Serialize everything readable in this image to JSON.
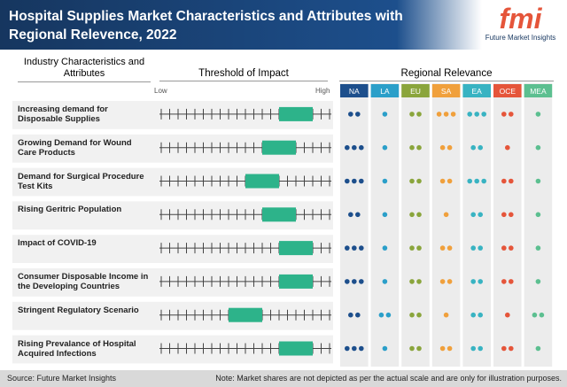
{
  "header": {
    "title": "Hospital Supplies Market Characteristics and Attributes with Regional Relevence, 2022"
  },
  "logo": {
    "text": "fmi",
    "tagline": "Future Market Insights"
  },
  "columns": {
    "characteristics": "Industry Characteristics and Attributes",
    "threshold": "Threshold of Impact",
    "regional": "Regional Relevance"
  },
  "scale": {
    "low": "Low",
    "high": "High",
    "min": 0,
    "max": 20
  },
  "regions": [
    {
      "name": "NA",
      "color": "#1d4f8c"
    },
    {
      "name": "LA",
      "color": "#2b9fc9"
    },
    {
      "name": "EU",
      "color": "#8aa53c"
    },
    {
      "name": "SA",
      "color": "#f0a03c"
    },
    {
      "name": "EA",
      "color": "#38b3c2"
    },
    {
      "name": "OCE",
      "color": "#e5553a"
    },
    {
      "name": "MEA",
      "color": "#5cbf90"
    }
  ],
  "rows": [
    {
      "label": "Increasing demand for Disposable Supplies",
      "impact": [
        14,
        18
      ],
      "dots": [
        2,
        1,
        2,
        3,
        3,
        2,
        1
      ]
    },
    {
      "label": "Growing Demand for Wound Care Products",
      "impact": [
        12,
        16
      ],
      "dots": [
        3,
        1,
        2,
        2,
        2,
        1,
        1
      ]
    },
    {
      "label": "Demand for Surgical Procedure Test Kits",
      "impact": [
        10,
        14
      ],
      "dots": [
        3,
        1,
        2,
        2,
        3,
        2,
        1
      ]
    },
    {
      "label": "Rising Geritric Population",
      "impact": [
        12,
        16
      ],
      "dots": [
        2,
        1,
        2,
        1,
        2,
        2,
        1
      ]
    },
    {
      "label": "Impact of COVID-19",
      "impact": [
        14,
        18
      ],
      "dots": [
        3,
        1,
        2,
        2,
        2,
        2,
        1
      ]
    },
    {
      "label": "Consumer Disposable Income in the Developing Countries",
      "impact": [
        14,
        18
      ],
      "dots": [
        3,
        1,
        2,
        2,
        2,
        2,
        1
      ]
    },
    {
      "label": "Stringent Regulatory Scenario",
      "impact": [
        8,
        12
      ],
      "dots": [
        2,
        2,
        2,
        1,
        2,
        1,
        2
      ]
    },
    {
      "label": "Rising Prevalance of Hospital Acquired Infections",
      "impact": [
        14,
        18
      ],
      "dots": [
        3,
        1,
        2,
        2,
        2,
        2,
        1
      ]
    }
  ],
  "footer": {
    "source": "Source: Future Market Insights",
    "note": "Note: Market shares are not depicted as per the actual scale and are only for illustration purposes."
  }
}
